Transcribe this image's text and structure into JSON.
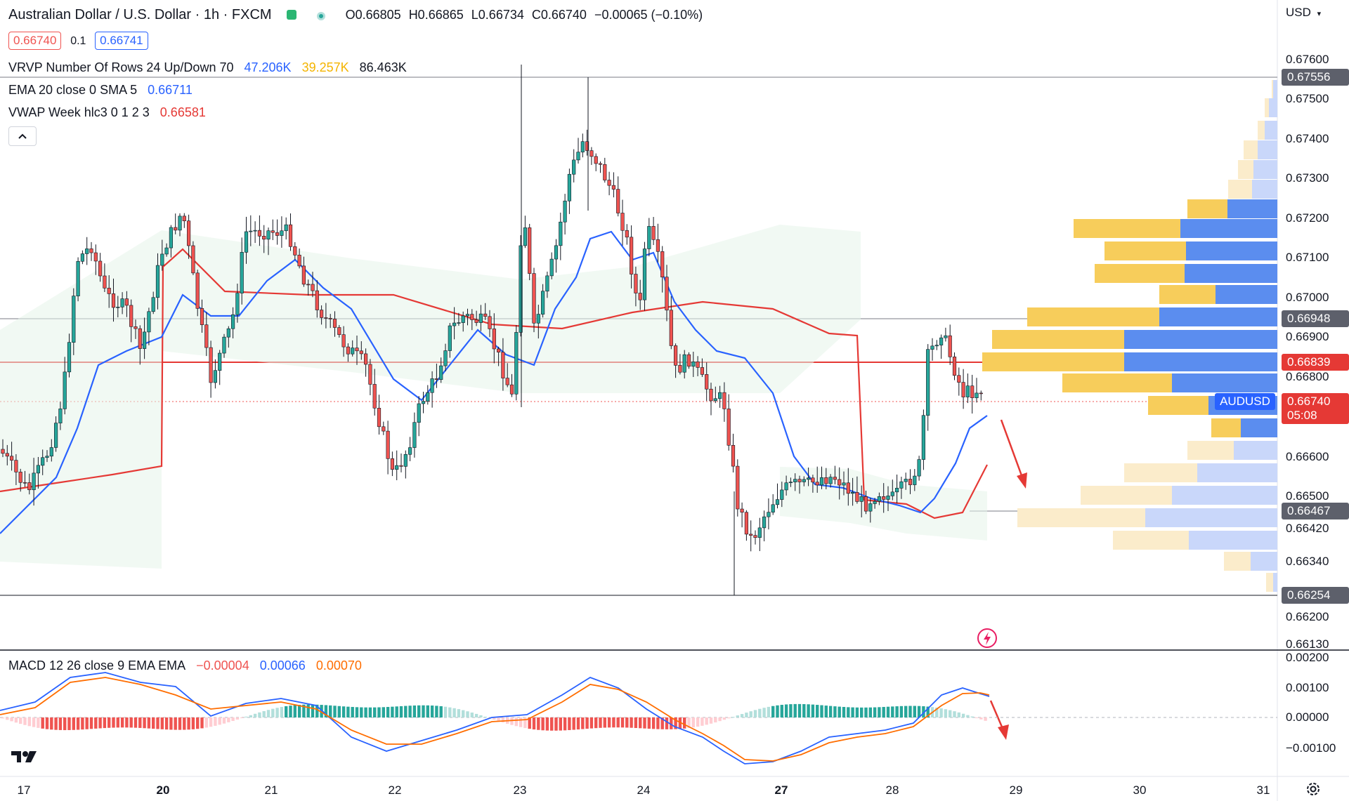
{
  "header": {
    "symbol_title": "Australian Dollar / U.S. Dollar · 1h · FXCM",
    "ohlc": {
      "open": "O0.66805",
      "high": "H0.66865",
      "low": "L0.66734",
      "close": "C0.66740",
      "change": "−0.00065 (−0.10%)"
    },
    "bid": "0.66740",
    "spread": "0.1",
    "ask": "0.66741"
  },
  "indicators": {
    "vrvp": {
      "label": "VRVP Number Of Rows 24 Up/Down 70",
      "up": "47.206K",
      "down": "39.257K",
      "total": "86.463K"
    },
    "ema": {
      "label": "EMA 20 close 0 SMA 5",
      "value": "0.66711"
    },
    "vwap": {
      "label": "VWAP Week hlc3 0 1 2 3",
      "value": "0.66581"
    },
    "macd": {
      "label": "MACD 12 26 close 9 EMA EMA",
      "hist": "−0.00004",
      "macd": "0.00066",
      "signal": "0.00070"
    }
  },
  "currency": "USD",
  "price_axis": [
    "0.67600",
    "0.67500",
    "0.67400",
    "0.67300",
    "0.67200",
    "0.67100",
    "0.67000",
    "0.66900",
    "0.66800",
    "0.66600",
    "0.66500",
    "0.66420",
    "0.66340",
    "0.66200",
    "0.66130"
  ],
  "price_tags": [
    {
      "value": "0.67556",
      "style": "grey"
    },
    {
      "value": "0.66948",
      "style": "grey"
    },
    {
      "value": "0.66839",
      "style": "red"
    },
    {
      "value": "0.66740",
      "style": "red"
    },
    {
      "value": "05:08",
      "style": "red"
    },
    {
      "value": "0.66467",
      "style": "grey"
    },
    {
      "value": "0.66254",
      "style": "grey"
    }
  ],
  "symbol_tag": "AUDUSD",
  "macd_axis": [
    "0.00200",
    "0.00100",
    "0.00000",
    "−0.00100"
  ],
  "dates": [
    "17",
    "20",
    "21",
    "22",
    "23",
    "24",
    "27",
    "28",
    "29",
    "30",
    "31"
  ],
  "colors": {
    "up": "#26a69a",
    "down": "#ef5350",
    "ema": "#2962ff",
    "vwap": "#e53935",
    "vp_up": "#5b8def",
    "vp_down": "#f7cd5b",
    "macd_line": "#2962ff",
    "signal_line": "#ff6d00"
  },
  "icons": {
    "logo": "tradingview-logo",
    "settings": "gear-icon",
    "alert": "lightning-icon"
  }
}
